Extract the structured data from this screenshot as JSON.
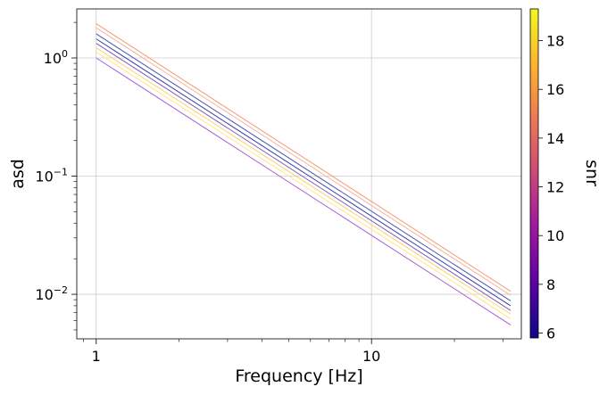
{
  "chart_data": {
    "type": "line",
    "title": "",
    "xlabel": "Frequency [Hz]",
    "ylabel": "asd",
    "xscale": "log",
    "yscale": "log",
    "xlim": [
      0.85,
      35
    ],
    "ylim": [
      0.0042,
      2.6
    ],
    "grid": true,
    "x_ticks": [
      {
        "value": 1,
        "label": "1"
      },
      {
        "value": 10,
        "label": "10"
      }
    ],
    "y_ticks": [
      {
        "value": 0.01,
        "base": "10",
        "exp": "−2"
      },
      {
        "value": 0.1,
        "base": "10",
        "exp": "−1"
      },
      {
        "value": 1,
        "base": "10",
        "exp": "0"
      }
    ],
    "x_range": [
      1,
      32
    ],
    "series": [
      {
        "y_at_1": 1.0,
        "y_at_32": 0.0055,
        "color": "#a95dd6"
      },
      {
        "y_at_1": 1.12,
        "y_at_32": 0.0062,
        "color": "#fde68a"
      },
      {
        "y_at_1": 1.22,
        "y_at_32": 0.0068,
        "color": "#fbd268"
      },
      {
        "y_at_1": 1.33,
        "y_at_32": 0.0073,
        "color": "#7a5fc7"
      },
      {
        "y_at_1": 1.45,
        "y_at_32": 0.008,
        "color": "#3a3fa4"
      },
      {
        "y_at_1": 1.6,
        "y_at_32": 0.0088,
        "color": "#4a5ab8"
      },
      {
        "y_at_1": 1.8,
        "y_at_32": 0.0098,
        "color": "#f7b49a"
      },
      {
        "y_at_1": 1.95,
        "y_at_32": 0.0106,
        "color": "#f59b76"
      }
    ],
    "colorbar": {
      "label": "snr",
      "range": [
        5.8,
        19.3
      ],
      "ticks": [
        "6",
        "8",
        "10",
        "12",
        "14",
        "16",
        "18"
      ],
      "tick_values": [
        6,
        8,
        10,
        12,
        14,
        16,
        18
      ],
      "colors": [
        "#0d0887",
        "#5c01a6",
        "#9c179e",
        "#cc4778",
        "#ed7953",
        "#fdb42f",
        "#f0f921"
      ]
    }
  }
}
